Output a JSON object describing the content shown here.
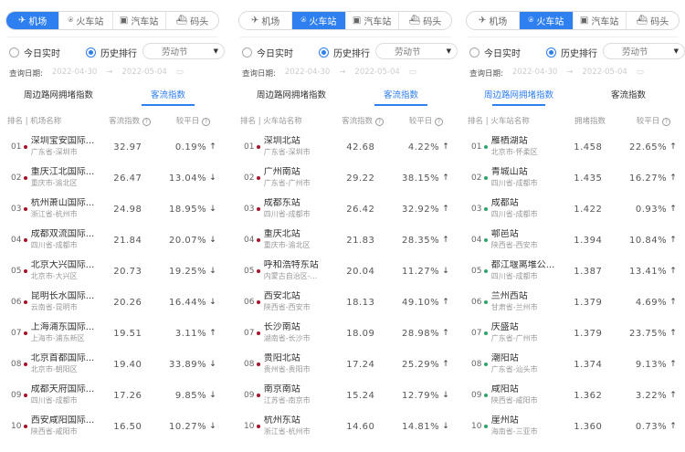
{
  "tabs": [
    "机场",
    "火车站",
    "汽车站",
    "码头"
  ],
  "tab_icons": [
    "plane-icon",
    "train-icon",
    "bus-icon",
    "ship-icon"
  ],
  "radio_today": "今日实时",
  "radio_history": "历史排行",
  "holiday": "劳动节",
  "date_label": "查询日期:",
  "date_start": "2022-04-30",
  "date_arrow": "→",
  "date_end": "2022-05-04",
  "subtab_congestion": "周边路网拥堵指数",
  "subtab_flow": "客流指数",
  "colors": {
    "accent": "#2e7ff0",
    "red_dot": "#a5122a",
    "green_dot": "#2da56a"
  },
  "panels": [
    {
      "active_tab": 0,
      "active_sub": 1,
      "dot": "red",
      "headers": [
        "排名 | 机场名称",
        "客流指数",
        "较平日"
      ],
      "rows": [
        [
          "01",
          "深圳宝安国际...",
          "广东省-深圳市",
          "32.97",
          "0.19%",
          "up"
        ],
        [
          "02",
          "重庆江北国际...",
          "重庆市-渝北区",
          "26.47",
          "13.04%",
          "down"
        ],
        [
          "03",
          "杭州萧山国际...",
          "浙江省-杭州市",
          "24.98",
          "18.95%",
          "down"
        ],
        [
          "04",
          "成都双流国际...",
          "四川省-成都市",
          "21.84",
          "20.07%",
          "down"
        ],
        [
          "05",
          "北京大兴国际...",
          "北京市-大兴区",
          "20.73",
          "19.25%",
          "down"
        ],
        [
          "06",
          "昆明长水国际...",
          "云南省-昆明市",
          "20.26",
          "16.44%",
          "down"
        ],
        [
          "07",
          "上海浦东国际...",
          "上海市-浦东新区",
          "19.51",
          "3.11%",
          "up"
        ],
        [
          "08",
          "北京首都国际...",
          "北京市-朝阳区",
          "19.40",
          "33.89%",
          "down"
        ],
        [
          "09",
          "成都天府国际...",
          "四川省-成都市",
          "17.26",
          "9.85%",
          "down"
        ],
        [
          "10",
          "西安咸阳国际...",
          "陕西省-咸阳市",
          "16.50",
          "10.27%",
          "down"
        ]
      ]
    },
    {
      "active_tab": 1,
      "active_sub": 1,
      "dot": "red",
      "headers": [
        "排名 | 火车站名称",
        "客流指数",
        "较平日"
      ],
      "rows": [
        [
          "01",
          "深圳北站",
          "广东省-深圳市",
          "42.68",
          "4.22%",
          "up"
        ],
        [
          "02",
          "广州南站",
          "广东省-广州市",
          "29.22",
          "38.15%",
          "up"
        ],
        [
          "03",
          "成都东站",
          "四川省-成都市",
          "26.42",
          "32.92%",
          "up"
        ],
        [
          "04",
          "重庆北站",
          "重庆市-渝北区",
          "21.83",
          "28.35%",
          "up"
        ],
        [
          "05",
          "呼和浩特东站",
          "内蒙古自治区-...",
          "20.04",
          "11.27%",
          "down"
        ],
        [
          "06",
          "西安北站",
          "陕西省-西安市",
          "18.13",
          "49.10%",
          "up"
        ],
        [
          "07",
          "长沙南站",
          "湖南省-长沙市",
          "18.09",
          "28.98%",
          "up"
        ],
        [
          "08",
          "贵阳北站",
          "贵州省-贵阳市",
          "17.24",
          "25.29%",
          "up"
        ],
        [
          "09",
          "南京南站",
          "江苏省-南京市",
          "15.24",
          "12.79%",
          "down"
        ],
        [
          "10",
          "杭州东站",
          "浙江省-杭州市",
          "14.60",
          "14.81%",
          "down"
        ]
      ]
    },
    {
      "active_tab": 1,
      "active_sub": 0,
      "dot": "green",
      "headers": [
        "排名 | 火车站名称",
        "拥堵指数",
        "较平日"
      ],
      "rows": [
        [
          "01",
          "雁栖湖站",
          "北京市-怀柔区",
          "1.458",
          "22.65%",
          "up"
        ],
        [
          "02",
          "青城山站",
          "四川省-成都市",
          "1.435",
          "16.27%",
          "up"
        ],
        [
          "03",
          "成都站",
          "四川省-成都市",
          "1.422",
          "0.93%",
          "up"
        ],
        [
          "04",
          "鄠邑站",
          "陕西省-西安市",
          "1.394",
          "10.84%",
          "up"
        ],
        [
          "05",
          "都江堰离堆公...",
          "四川省-成都市",
          "1.387",
          "13.41%",
          "up"
        ],
        [
          "06",
          "兰州西站",
          "甘肃省-兰州市",
          "1.379",
          "4.69%",
          "up"
        ],
        [
          "07",
          "庆盛站",
          "广东省-广州市",
          "1.379",
          "23.75%",
          "up"
        ],
        [
          "08",
          "潮阳站",
          "广东省-汕头市",
          "1.374",
          "9.13%",
          "up"
        ],
        [
          "09",
          "咸阳站",
          "陕西省-咸阳市",
          "1.362",
          "3.22%",
          "up"
        ],
        [
          "10",
          "崖州站",
          "海南省-三亚市",
          "1.360",
          "0.73%",
          "up"
        ]
      ]
    }
  ]
}
